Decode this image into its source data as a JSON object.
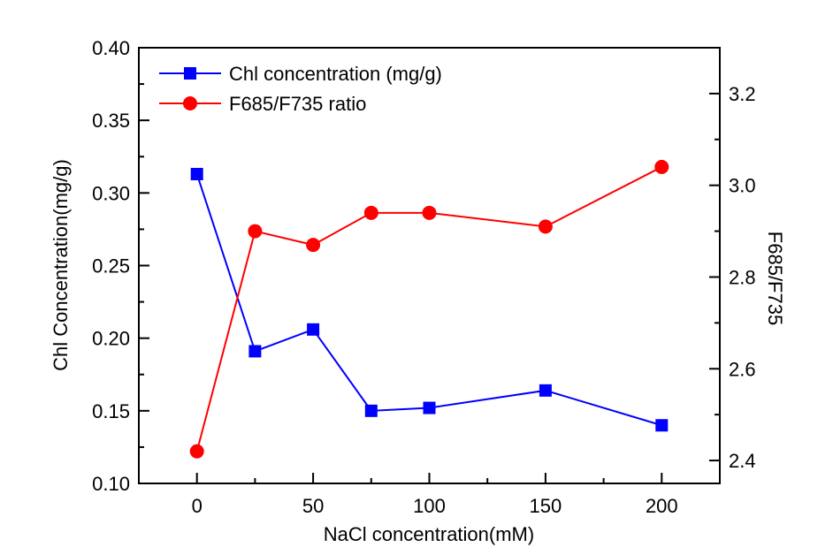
{
  "chart_data": {
    "type": "line",
    "title": "",
    "xlabel": "NaCl concentration(mM)",
    "ylabel": "Chl Concentration(mg/g)",
    "y2label": "F685/F735",
    "x": [
      0,
      25,
      50,
      75,
      100,
      150,
      200
    ],
    "xlim": [
      -25,
      225
    ],
    "ylim": [
      0.1,
      0.4
    ],
    "y2lim": [
      2.35,
      3.3
    ],
    "xticks": [
      0,
      50,
      100,
      150,
      200
    ],
    "xtick_labels": [
      "0",
      "50",
      "100",
      "150",
      "200"
    ],
    "xminor": [
      25,
      75,
      125,
      175
    ],
    "yticks": [
      0.1,
      0.15,
      0.2,
      0.25,
      0.3,
      0.35,
      0.4
    ],
    "ytick_labels": [
      "0.10",
      "0.15",
      "0.20",
      "0.25",
      "0.30",
      "0.35",
      "0.40"
    ],
    "yminor": [
      0.125,
      0.175,
      0.225,
      0.275,
      0.325,
      0.375
    ],
    "y2ticks": [
      2.4,
      2.6,
      2.8,
      3.0,
      3.2
    ],
    "y2tick_labels": [
      "2.4",
      "2.6",
      "2.8",
      "3.0",
      "3.2"
    ],
    "y2minor": [
      2.5,
      2.7,
      2.9,
      3.1
    ],
    "grid": false,
    "legend_position": "top-left",
    "series": [
      {
        "name": "Chl concentration (mg/g)",
        "axis": "left",
        "marker": "square",
        "color": "#0000ff",
        "values": [
          0.313,
          0.191,
          0.206,
          0.15,
          0.152,
          0.164,
          0.14
        ]
      },
      {
        "name": "F685/F735 ratio",
        "axis": "right",
        "marker": "circle",
        "color": "#ff0000",
        "values": [
          2.42,
          2.9,
          2.87,
          2.94,
          2.94,
          2.91,
          3.04
        ]
      }
    ]
  }
}
